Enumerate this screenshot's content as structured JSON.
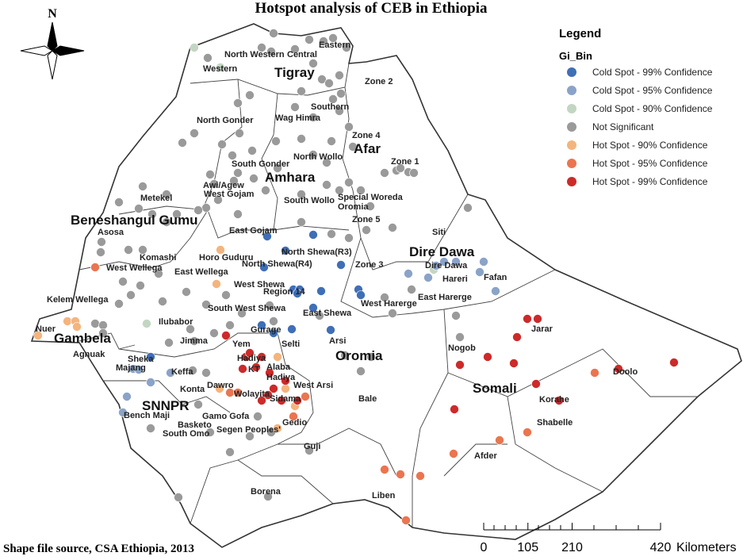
{
  "title": "Hotspot analysis of CEB in Ethiopia",
  "source": "Shape file source, CSA Ethiopia, 2013",
  "north": "N",
  "legend": {
    "title": "Legend",
    "field": "Gi_Bin",
    "items": [
      {
        "label": "Cold Spot - 99% Confidence",
        "color": "#3f6fb6"
      },
      {
        "label": "Cold Spot - 95% Confidence",
        "color": "#8aa3c8"
      },
      {
        "label": "Cold Spot - 90% Confidence",
        "color": "#c3d6c2"
      },
      {
        "label": "Not Significant",
        "color": "#9a9a9a"
      },
      {
        "label": "Hot Spot - 90% Confidence",
        "color": "#f4b47e"
      },
      {
        "label": "Hot Spot - 95% Confidence",
        "color": "#ea7550"
      },
      {
        "label": "Hot Spot - 99% Confidence",
        "color": "#cd2a2a"
      }
    ]
  },
  "regions": [
    "Tigray",
    "Afar",
    "Amhara",
    "Beneshangul Gumu",
    "Dire Dawa",
    "Gambela",
    "Oromia",
    "Somali",
    "SNNPR"
  ],
  "zones": [
    "North Western",
    "Central",
    "Eastern",
    "Western",
    "Zone 2",
    "Southern",
    "North Gonder",
    "Wag Himra",
    "Zone 4",
    "North Wollo",
    "Zone 1",
    "South Gonder",
    "Awi/Agew",
    "West Gojam",
    "Metekel",
    "Special Woreda",
    "Oromia",
    "South Wollo",
    "Zone 5",
    "Asosa",
    "East Gojam",
    "Siti",
    "Komashi",
    "Horo Guduru",
    "North Shewa(R3)",
    "North Shewa(R4)",
    "Zone 3",
    "West Wellega",
    "East Wellega",
    "Dire Dawa",
    "Hareri",
    "Fafan",
    "West Shewa",
    "Region 14",
    "West Harerge",
    "East Harerge",
    "Kelem Wellega",
    "South West Shewa",
    "East Shewa",
    "Ilubabor",
    "Nuer",
    "Jarar",
    "Gurage",
    "Jimma",
    "Yem",
    "Selti",
    "Arsi",
    "Agnuak",
    "Hadiya",
    "Nogob",
    "Sheka",
    "Majang",
    "KT",
    "Alaba",
    "Keffa",
    "Hadiya",
    "Doolo",
    "Konta",
    "Dawro",
    "Wolayita",
    "West Arsi",
    "Korahe",
    "Sidama",
    "Bale",
    "Shabelle",
    "Bench Maji",
    "Gamo Gofa",
    "Basketo",
    "Gedio",
    "Afder",
    "Guji",
    "South Omo",
    "Segen Peoples'",
    "Borena",
    "Liben"
  ],
  "scale_bar": {
    "ticks": [
      0,
      105,
      210,
      420
    ],
    "unit": "Kilometers"
  }
}
